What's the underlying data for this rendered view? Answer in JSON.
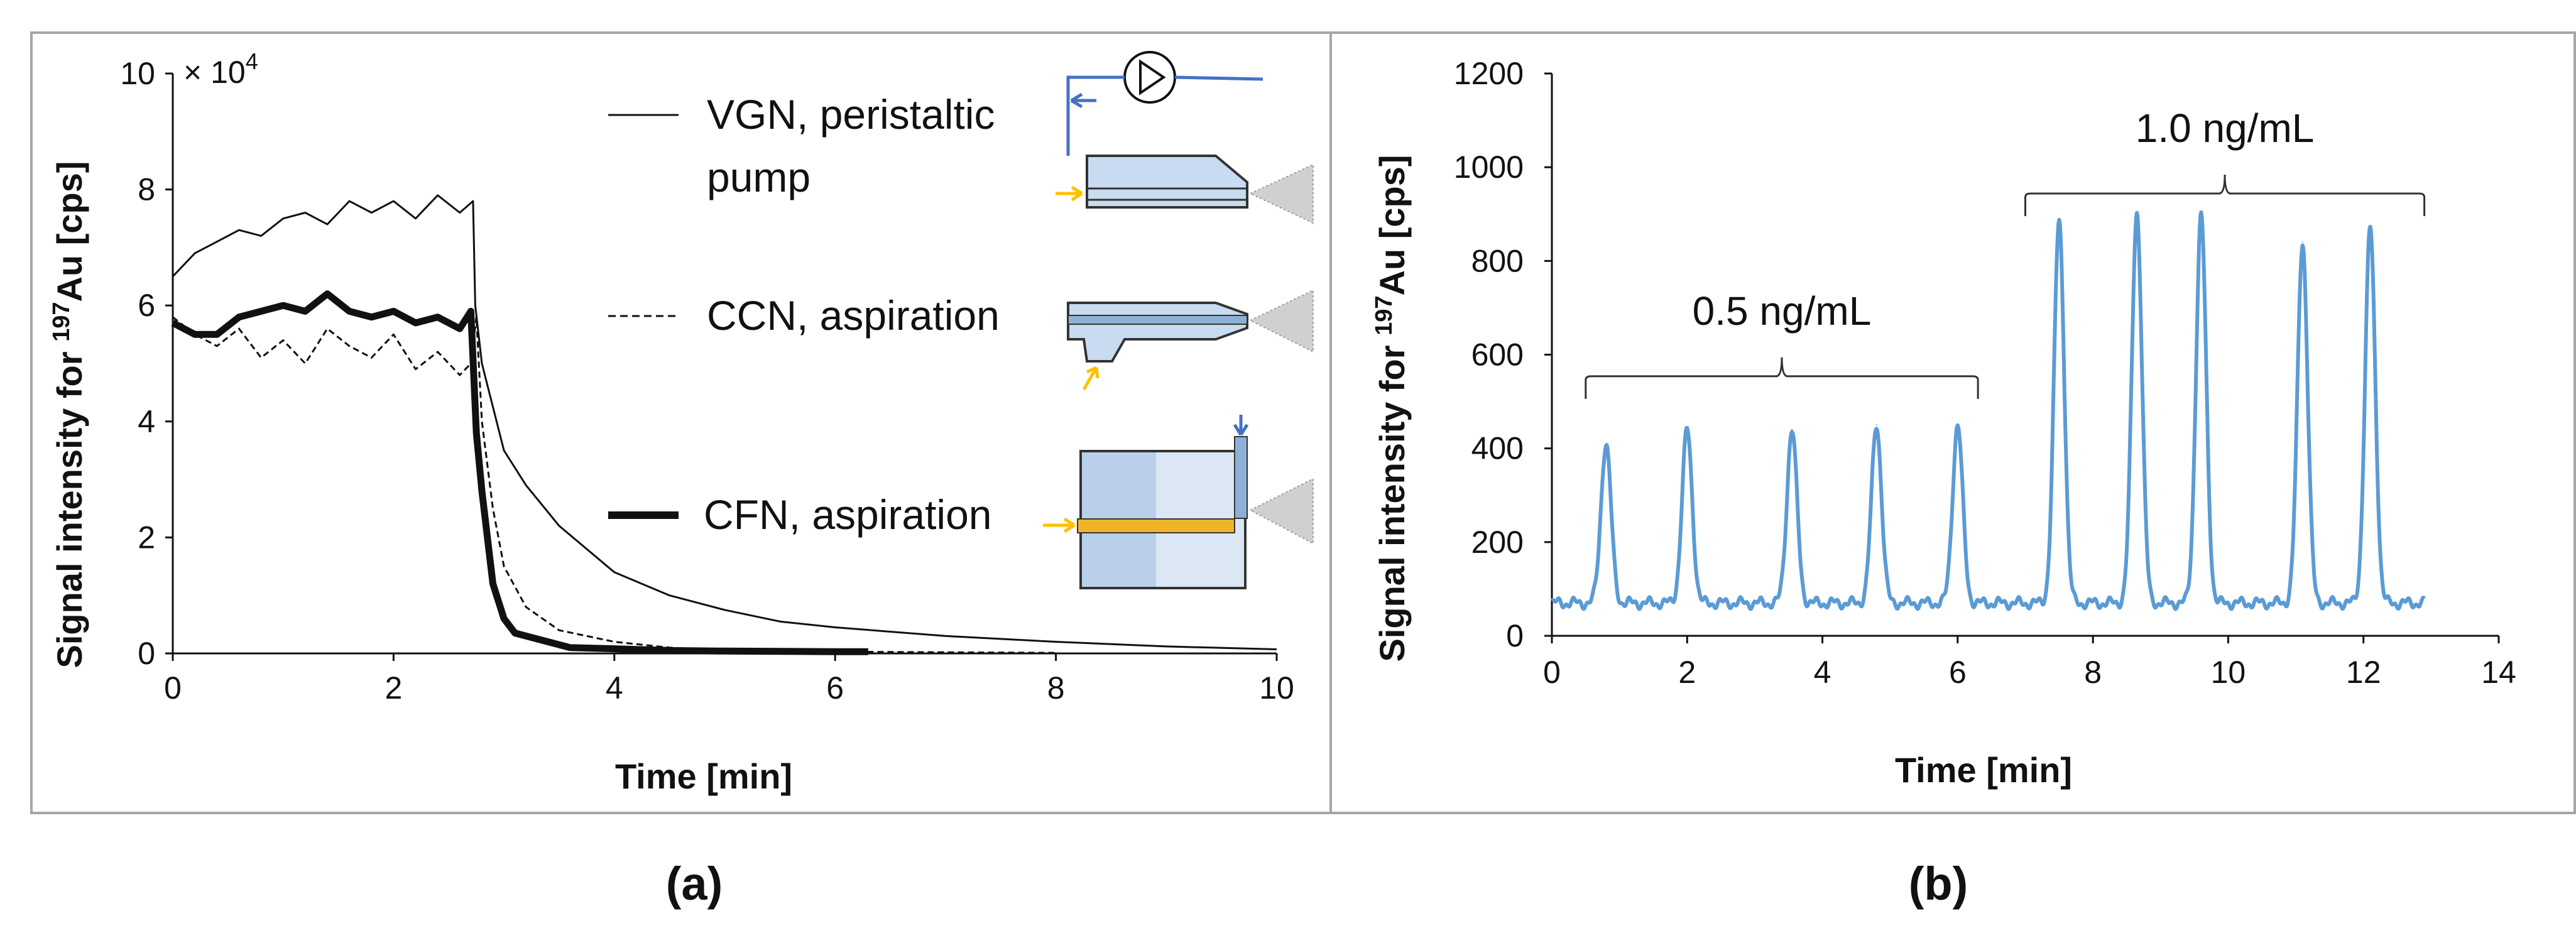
{
  "chart_data": [
    {
      "type": "line",
      "panel_label": "(a)",
      "xlabel": "Time [min]",
      "ylabel": {
        "prefix": "Signal intensity for ",
        "sup": "197",
        "suffix": "Au [cps]"
      },
      "multiplier": "× 10",
      "multiplier_exp": "4",
      "xlim": [
        0,
        10
      ],
      "ylim": [
        0,
        10
      ],
      "xticks": [
        0,
        2,
        4,
        6,
        8,
        10
      ],
      "yticks": [
        0,
        2,
        4,
        6,
        8,
        10
      ],
      "series": [
        {
          "name": "VGN, peristaltic pump",
          "legend_lines": [
            "VGN, peristaltic",
            "pump"
          ],
          "style": "thin",
          "x": [
            0,
            0.2,
            0.4,
            0.6,
            0.8,
            1.0,
            1.2,
            1.4,
            1.6,
            1.8,
            2.0,
            2.2,
            2.4,
            2.6,
            2.72,
            2.74,
            2.8,
            3.0,
            3.2,
            3.5,
            4.0,
            4.5,
            5.0,
            5.5,
            6.0,
            7.0,
            8.0,
            9.0,
            10.0
          ],
          "values": [
            6.5,
            6.9,
            7.1,
            7.3,
            7.2,
            7.5,
            7.6,
            7.4,
            7.8,
            7.6,
            7.8,
            7.5,
            7.9,
            7.6,
            7.8,
            6.0,
            5.0,
            3.5,
            2.9,
            2.2,
            1.4,
            1.0,
            0.75,
            0.55,
            0.45,
            0.3,
            0.2,
            0.12,
            0.07
          ]
        },
        {
          "name": "CCN, aspiration",
          "legend_lines": [
            "CCN, aspiration"
          ],
          "style": "dashed",
          "x": [
            0,
            0.2,
            0.4,
            0.6,
            0.8,
            1.0,
            1.2,
            1.4,
            1.6,
            1.8,
            2.0,
            2.2,
            2.4,
            2.6,
            2.7,
            2.75,
            2.8,
            2.9,
            3.0,
            3.2,
            3.5,
            4.0,
            4.5,
            5.0,
            6.0,
            7.0,
            8.0
          ],
          "values": [
            5.8,
            5.5,
            5.3,
            5.6,
            5.1,
            5.4,
            5.0,
            5.6,
            5.3,
            5.1,
            5.5,
            4.9,
            5.2,
            4.8,
            5.0,
            5.8,
            4.0,
            2.5,
            1.5,
            0.8,
            0.4,
            0.2,
            0.1,
            0.05,
            0.03,
            0.02,
            0.01
          ]
        },
        {
          "name": "CFN, aspiration",
          "legend_lines": [
            "CFN, aspiration"
          ],
          "style": "thick",
          "x": [
            0,
            0.2,
            0.4,
            0.6,
            0.8,
            1.0,
            1.2,
            1.4,
            1.6,
            1.8,
            2.0,
            2.2,
            2.4,
            2.6,
            2.7,
            2.75,
            2.8,
            2.9,
            3.0,
            3.1,
            3.3,
            3.6,
            4.0,
            4.5,
            5.0,
            6.0,
            6.3
          ],
          "values": [
            5.7,
            5.5,
            5.5,
            5.8,
            5.9,
            6.0,
            5.9,
            6.2,
            5.9,
            5.8,
            5.9,
            5.7,
            5.8,
            5.6,
            5.9,
            3.8,
            2.8,
            1.2,
            0.6,
            0.35,
            0.25,
            0.1,
            0.08,
            0.05,
            0.04,
            0.03,
            0.03
          ]
        }
      ]
    },
    {
      "type": "line",
      "panel_label": "(b)",
      "xlabel": "Time [min]",
      "ylabel": {
        "prefix": "Signal intensity for ",
        "sup": "197",
        "suffix": "Au [cps]"
      },
      "xlim": [
        0,
        14
      ],
      "ylim": [
        0,
        1200
      ],
      "xticks": [
        0,
        2,
        4,
        6,
        8,
        10,
        12,
        14
      ],
      "yticks": [
        0,
        200,
        400,
        600,
        800,
        1000,
        1200
      ],
      "series": [
        {
          "name": "Au signal",
          "baseline": 70,
          "x_end": 12.9,
          "peaks": [
            {
              "x": 0.8,
              "value": 410
            },
            {
              "x": 2.0,
              "value": 440
            },
            {
              "x": 3.55,
              "value": 440
            },
            {
              "x": 4.8,
              "value": 450
            },
            {
              "x": 6.0,
              "value": 450
            },
            {
              "x": 7.5,
              "value": 885
            },
            {
              "x": 8.65,
              "value": 905
            },
            {
              "x": 9.6,
              "value": 895
            },
            {
              "x": 11.1,
              "value": 840
            },
            {
              "x": 12.1,
              "value": 870
            }
          ]
        }
      ],
      "annotations": [
        {
          "text": "0.5 ng/mL",
          "x_from": 0.5,
          "x_to": 6.3,
          "y": 570
        },
        {
          "text": "1.0 ng/mL",
          "x_from": 7.0,
          "x_to": 12.9,
          "y": 960
        }
      ]
    }
  ],
  "colors": {
    "series_b": "#5b9bd5",
    "axis": "#111111",
    "frame": "#a6a6a6",
    "pump_arrow": "#4472c4",
    "inlet_arrow": "#ffc000",
    "capillary": "#f0b428"
  }
}
